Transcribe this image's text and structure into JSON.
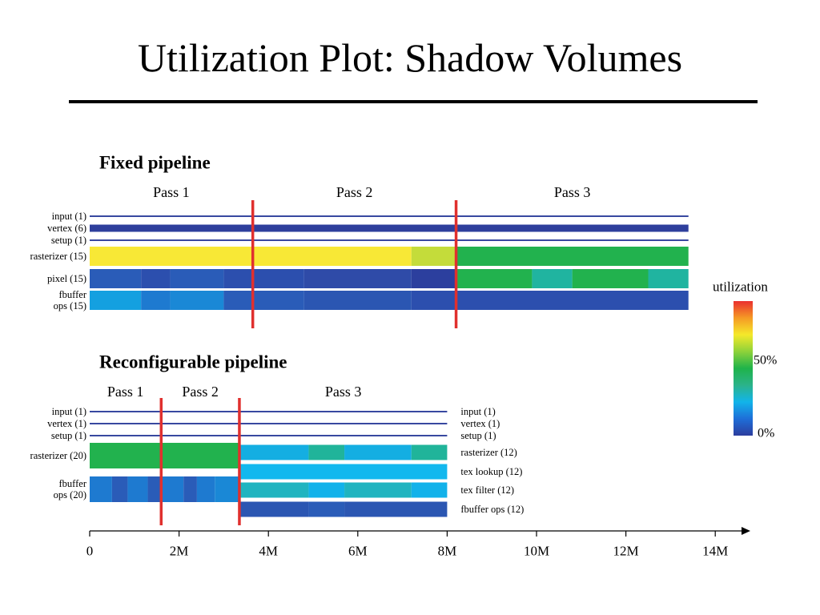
{
  "slide_title": "Utilization Plot: Shadow Volumes",
  "chart_data": {
    "type": "heatmap",
    "x_axis": {
      "ticks": [
        "0",
        "2M",
        "4M",
        "6M",
        "8M",
        "10M",
        "12M",
        "14M"
      ],
      "range": [
        0,
        14.5
      ]
    },
    "colorbar": {
      "title": "utilization",
      "labels": [
        "50%",
        "0%"
      ],
      "stops": [
        "#2c3d9e",
        "#1e6ed8",
        "#12b4ea",
        "#2bb38a",
        "#1fb34a",
        "#8ed23a",
        "#f5e92a",
        "#f59a25",
        "#ea2f2f"
      ]
    },
    "panels": [
      {
        "title": "Fixed pipeline",
        "passes": [
          {
            "label": "Pass 1",
            "start": 0,
            "end": 3.65
          },
          {
            "label": "Pass 2",
            "start": 3.65,
            "end": 8.2
          },
          {
            "label": "Pass 3",
            "start": 8.2,
            "end": 13.4
          }
        ],
        "boundaries": [
          3.65,
          8.2
        ],
        "rows": [
          {
            "label": "input (1)",
            "kind": "line",
            "color": "#3848a0",
            "end": 13.4
          },
          {
            "label": "vertex (6)",
            "kind": "thick",
            "color": "#2e3f9c",
            "end": 13.4
          },
          {
            "label": "setup (1)",
            "kind": "line",
            "color": "#3848a0",
            "end": 13.4
          },
          {
            "label": "rasterizer (15)",
            "kind": "band",
            "segments": [
              {
                "start": 0,
                "end": 7.2,
                "color": "#f8e836"
              },
              {
                "start": 7.2,
                "end": 8.2,
                "color": "#c4dc3a"
              },
              {
                "start": 8.2,
                "end": 13.4,
                "color": "#22b24e"
              }
            ]
          },
          {
            "label": "pixel (15)",
            "kind": "band",
            "segments": [
              {
                "start": 0,
                "end": 1.15,
                "color": "#2a5cb8"
              },
              {
                "start": 1.15,
                "end": 1.8,
                "color": "#2c4fae"
              },
              {
                "start": 1.8,
                "end": 3.0,
                "color": "#2a5cb8"
              },
              {
                "start": 3.0,
                "end": 4.8,
                "color": "#2c4fae"
              },
              {
                "start": 4.8,
                "end": 7.2,
                "color": "#2f4ba8"
              },
              {
                "start": 7.2,
                "end": 8.2,
                "color": "#2c3f9e"
              },
              {
                "start": 8.2,
                "end": 9.9,
                "color": "#22b24e"
              },
              {
                "start": 9.9,
                "end": 10.8,
                "color": "#20b4a0"
              },
              {
                "start": 10.8,
                "end": 12.5,
                "color": "#22b24e"
              },
              {
                "start": 12.5,
                "end": 13.4,
                "color": "#20b4a0"
              }
            ]
          },
          {
            "label": "fbuffer\nops (15)",
            "kind": "band",
            "segments": [
              {
                "start": 0,
                "end": 1.15,
                "color": "#14a0e0"
              },
              {
                "start": 1.15,
                "end": 1.8,
                "color": "#1e7ad0"
              },
              {
                "start": 1.8,
                "end": 3.0,
                "color": "#1a88d6"
              },
              {
                "start": 3.0,
                "end": 4.8,
                "color": "#2a5cb8"
              },
              {
                "start": 4.8,
                "end": 7.2,
                "color": "#2b56b2"
              },
              {
                "start": 7.2,
                "end": 8.2,
                "color": "#2c4fae"
              },
              {
                "start": 8.2,
                "end": 13.4,
                "color": "#2c4fae"
              }
            ]
          }
        ]
      },
      {
        "title": "Reconfigurable pipeline",
        "passes": [
          {
            "label": "Pass 1",
            "start": 0,
            "end": 1.6
          },
          {
            "label": "Pass 2",
            "start": 1.6,
            "end": 3.35
          },
          {
            "label": "Pass 3",
            "start": 3.35,
            "end": 8.0
          }
        ],
        "boundaries": [
          1.6,
          3.35
        ],
        "rows": [
          {
            "label": "input (1)",
            "right_label": "input (1)",
            "kind": "line",
            "color": "#3848a0",
            "end": 8.0
          },
          {
            "label": "vertex (1)",
            "right_label": "vertex (1)",
            "kind": "line",
            "color": "#3848a0",
            "end": 8.0
          },
          {
            "label": "setup (1)",
            "right_label": "setup (1)",
            "kind": "line",
            "color": "#3848a0",
            "end": 8.0
          },
          {
            "label": "rasterizer (20)",
            "kind": "band",
            "segments": [
              {
                "start": 0,
                "end": 3.35,
                "color": "#22b24e"
              }
            ]
          },
          {
            "label": "fbuffer\nops (20)",
            "kind": "band",
            "segments": [
              {
                "start": 0,
                "end": 0.5,
                "color": "#1e7ad0"
              },
              {
                "start": 0.5,
                "end": 0.85,
                "color": "#2a5cb8"
              },
              {
                "start": 0.85,
                "end": 1.3,
                "color": "#1e7ad0"
              },
              {
                "start": 1.3,
                "end": 1.6,
                "color": "#2a5cb8"
              },
              {
                "start": 1.6,
                "end": 2.1,
                "color": "#1e7ad0"
              },
              {
                "start": 2.1,
                "end": 2.4,
                "color": "#2a5cb8"
              },
              {
                "start": 2.4,
                "end": 2.8,
                "color": "#1e7ad0"
              },
              {
                "start": 2.8,
                "end": 3.35,
                "color": "#1a88d6"
              }
            ]
          },
          {
            "right_label": "rasterizer (12)",
            "kind": "band",
            "segments": [
              {
                "start": 3.35,
                "end": 4.9,
                "color": "#14aee2"
              },
              {
                "start": 4.9,
                "end": 5.7,
                "color": "#20b49a"
              },
              {
                "start": 5.7,
                "end": 7.2,
                "color": "#14aee2"
              },
              {
                "start": 7.2,
                "end": 8.0,
                "color": "#20b49a"
              }
            ]
          },
          {
            "right_label": "tex lookup (12)",
            "kind": "band",
            "segments": [
              {
                "start": 3.35,
                "end": 8.0,
                "color": "#12b8ee"
              }
            ]
          },
          {
            "right_label": "tex filter (12)",
            "kind": "band",
            "segments": [
              {
                "start": 3.35,
                "end": 4.9,
                "color": "#20b4c0"
              },
              {
                "start": 4.9,
                "end": 5.7,
                "color": "#12b2ea"
              },
              {
                "start": 5.7,
                "end": 7.2,
                "color": "#20b4c0"
              },
              {
                "start": 7.2,
                "end": 8.0,
                "color": "#12b2ea"
              }
            ]
          },
          {
            "right_label": "fbuffer ops (12)",
            "kind": "band",
            "segments": [
              {
                "start": 3.35,
                "end": 4.9,
                "color": "#2b56b2"
              },
              {
                "start": 4.9,
                "end": 5.7,
                "color": "#2a5cb8"
              },
              {
                "start": 5.7,
                "end": 8.0,
                "color": "#2b56b2"
              }
            ]
          }
        ]
      }
    ],
    "divider_color": "#e0302e"
  }
}
